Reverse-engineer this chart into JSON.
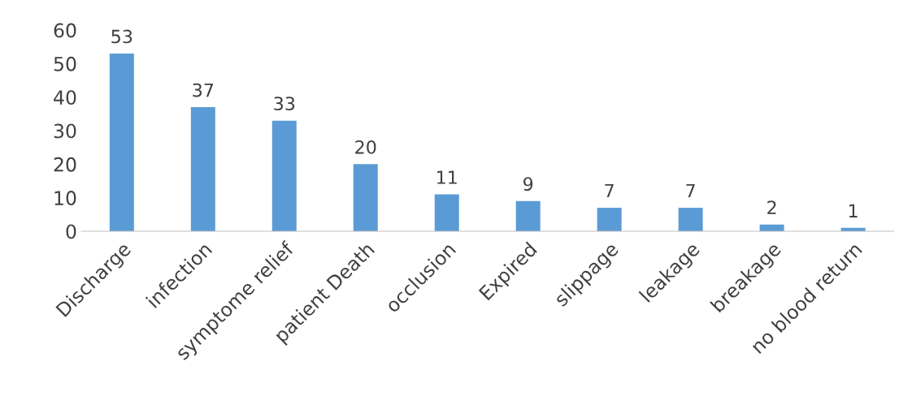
{
  "chart_data": {
    "type": "bar",
    "categories": [
      "Discharge",
      "infection",
      "symptome relief",
      "patient Death",
      "occlusion",
      "Expired",
      "slippage",
      "leakage",
      "breakage",
      "no blood return"
    ],
    "values": [
      53,
      37,
      33,
      20,
      11,
      9,
      7,
      7,
      2,
      1
    ],
    "color": "#5b9bd5",
    "ylim": [
      0,
      60
    ],
    "yticks": [
      0,
      10,
      20,
      30,
      40,
      50,
      60
    ],
    "data_labels": true,
    "grid": false,
    "legend": false
  }
}
